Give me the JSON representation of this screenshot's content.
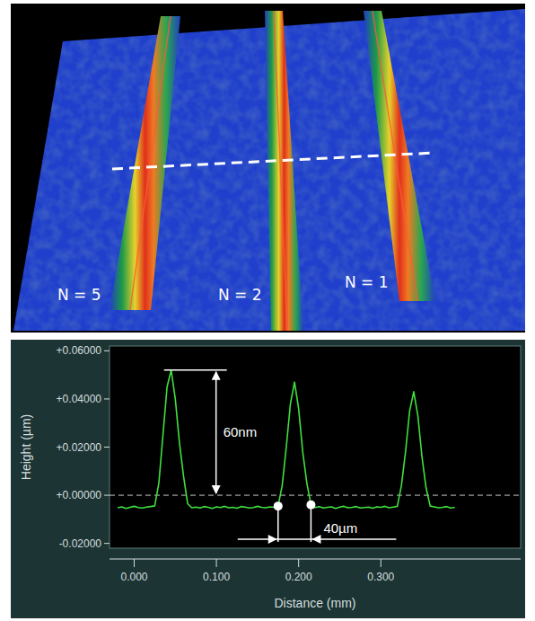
{
  "surface": {
    "labels": [
      "N = 5",
      "N = 2",
      "N = 1"
    ]
  },
  "chart_data": {
    "type": "line",
    "x_label": "Distance (mm)",
    "y_label": "Height (µm)",
    "annotations": [
      "60nm",
      "40µm"
    ],
    "color": "#3ee03e",
    "xlim": [
      -0.03,
      0.47
    ],
    "ylim": [
      -0.022,
      0.062
    ],
    "xticks": [
      {
        "value": 0,
        "label": "0.000"
      },
      {
        "value": 0.1,
        "label": "0.100"
      },
      {
        "value": 0.2,
        "label": "0.200"
      },
      {
        "value": 0.3,
        "label": "0.300"
      }
    ],
    "yticks": [
      {
        "value": 0.06,
        "label": "+0.06000"
      },
      {
        "value": 0.04,
        "label": "+0.04000"
      },
      {
        "value": 0.02,
        "label": "+0.02000"
      },
      {
        "value": 0,
        "label": "+0.00000"
      },
      {
        "value": -0.02,
        "label": "-0.02000"
      }
    ],
    "x": [
      -0.02,
      -0.015,
      -0.01,
      -0.005,
      0,
      0.005,
      0.01,
      0.015,
      0.02,
      0.025,
      0.03,
      0.035,
      0.04,
      0.045,
      0.05,
      0.055,
      0.06,
      0.065,
      0.07,
      0.075,
      0.08,
      0.085,
      0.09,
      0.095,
      0.1,
      0.105,
      0.11,
      0.115,
      0.12,
      0.125,
      0.13,
      0.135,
      0.14,
      0.145,
      0.15,
      0.155,
      0.16,
      0.165,
      0.17,
      0.175,
      0.18,
      0.185,
      0.19,
      0.195,
      0.2,
      0.205,
      0.21,
      0.215,
      0.22,
      0.225,
      0.23,
      0.235,
      0.24,
      0.245,
      0.25,
      0.255,
      0.26,
      0.265,
      0.27,
      0.275,
      0.28,
      0.285,
      0.29,
      0.295,
      0.3,
      0.305,
      0.31,
      0.315,
      0.32,
      0.325,
      0.33,
      0.335,
      0.34,
      0.345,
      0.35,
      0.355,
      0.36,
      0.365,
      0.37,
      0.375,
      0.38,
      0.385,
      0.39
    ],
    "values": [
      -0.0052,
      -0.0048,
      -0.0055,
      -0.005,
      -0.0046,
      -0.0051,
      -0.0053,
      -0.0049,
      -0.0047,
      -0.0044,
      0.005,
      0.025,
      0.045,
      0.052,
      0.04,
      0.022,
      0.008,
      -0.0035,
      -0.0052,
      -0.0049,
      -0.0053,
      -0.0047,
      -0.005,
      -0.0055,
      -0.0048,
      -0.0051,
      -0.0046,
      -0.0052,
      -0.005,
      -0.0054,
      -0.0047,
      -0.0049,
      -0.0053,
      -0.0051,
      -0.0046,
      -0.005,
      -0.0052,
      -0.0048,
      -0.005,
      -0.0045,
      0.004,
      0.02,
      0.038,
      0.047,
      0.036,
      0.018,
      0.005,
      -0.004,
      -0.0051,
      -0.0047,
      -0.0053,
      -0.005,
      -0.0048,
      -0.0055,
      -0.0049,
      -0.0046,
      -0.0052,
      -0.005,
      -0.0047,
      -0.0053,
      -0.0051,
      -0.0049,
      -0.0054,
      -0.0048,
      -0.005,
      -0.0046,
      -0.0052,
      -0.0049,
      -0.0046,
      0.004,
      0.018,
      0.035,
      0.043,
      0.033,
      0.016,
      0.003,
      -0.0045,
      -0.0048,
      -0.0052,
      -0.005,
      -0.0047,
      -0.0053,
      -0.005
    ],
    "grid": false
  }
}
